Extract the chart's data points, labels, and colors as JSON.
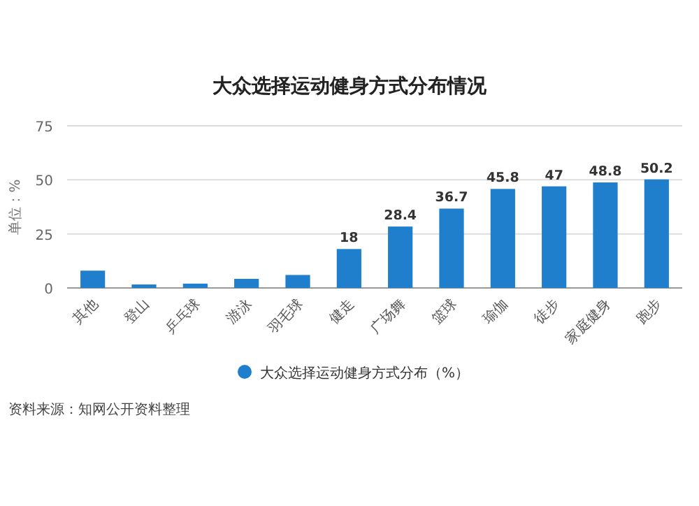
{
  "chart_data": {
    "type": "bar",
    "title": "大众选择运动健身方式分布情况",
    "ylabel": "单位：%",
    "categories": [
      "其他",
      "登山",
      "乒乓球",
      "游泳",
      "羽毛球",
      "健走",
      "广场舞",
      "篮球",
      "瑜伽",
      "徒步",
      "家庭健身",
      "跑步"
    ],
    "series": [
      {
        "name": "大众选择运动健身方式分布（%）",
        "color": "#1f7fcc",
        "values": [
          8,
          1.6,
          2,
          4.2,
          6,
          18,
          28.4,
          36.7,
          45.8,
          47,
          48.8,
          50.2
        ],
        "value_labels": [
          null,
          null,
          null,
          null,
          null,
          "18",
          "28.4",
          "36.7",
          "45.8",
          "47",
          "48.8",
          "50.2"
        ]
      }
    ],
    "ylim": [
      0,
      75
    ],
    "yticks": [
      0,
      25,
      50,
      75
    ],
    "grid": "y",
    "legend": "bottom",
    "annotations": [
      "资料来源：知网公开资料整理"
    ]
  }
}
